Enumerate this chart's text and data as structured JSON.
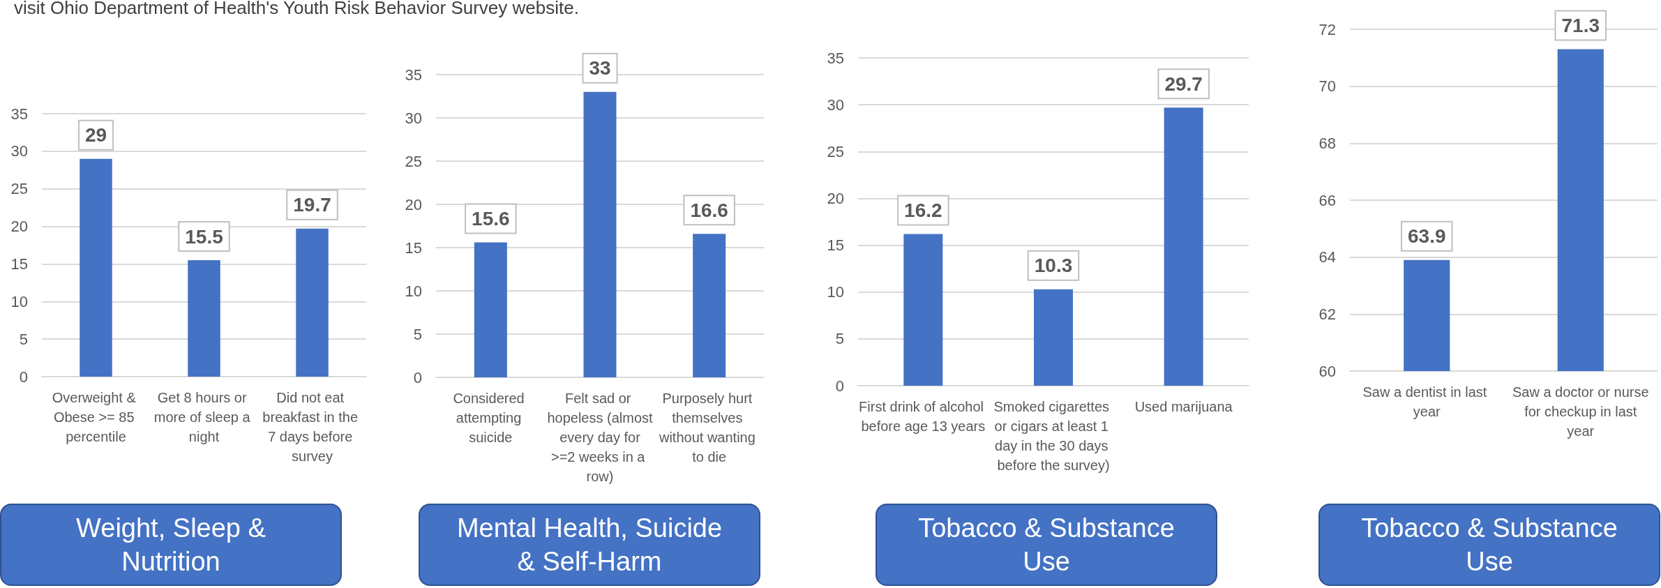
{
  "chart_data": [
    {
      "type": "bar",
      "title": "Weight, Sleep & Nutrition",
      "annotations": [
        "visit Ohio Department of Health's Youth Risk Behavior Survey website."
      ],
      "categories": [
        "Overweight & Obese >= 85 percentile",
        "Get 8 hours or more of sleep a night",
        "Did not eat breakfast in the 7 days before survey"
      ],
      "values": [
        29,
        15.5,
        19.7
      ],
      "color": "#4472c4",
      "ylim": [
        0,
        35
      ],
      "yticks": [
        0,
        5,
        10,
        15,
        20,
        25,
        30,
        35
      ],
      "grid": "y",
      "data_labels": true
    },
    {
      "type": "bar",
      "title": "Mental Health, Suicide & Self-Harm",
      "categories": [
        "Considered attempting suicide",
        "Felt sad or hopeless (almost every day for >=2 weeks in a row)",
        "Purposely hurt themselves without wanting to die"
      ],
      "values": [
        15.6,
        33,
        16.6
      ],
      "color": "#4472c4",
      "ylim": [
        0,
        35
      ],
      "yticks": [
        0,
        5,
        10,
        15,
        20,
        25,
        30,
        35
      ],
      "grid": "y",
      "data_labels": true
    },
    {
      "type": "bar",
      "title": "Tobacco & Substance Use",
      "categories": [
        "First drink of alcohol before age 13 years",
        "Smoked cigarettes or cigars at least 1 day in the 30 days before the survey)",
        "Used marijuana"
      ],
      "values": [
        16.2,
        10.3,
        29.7
      ],
      "color": "#4472c4",
      "ylim": [
        0,
        35
      ],
      "yticks": [
        0,
        5,
        10,
        15,
        20,
        25,
        30,
        35
      ],
      "grid": "y",
      "data_labels": true
    },
    {
      "type": "bar",
      "title": "Tobacco & Substance Use",
      "categories": [
        "Saw a dentist in last year",
        "Saw a doctor or nurse for checkup in last year"
      ],
      "values": [
        63.9,
        71.3
      ],
      "color": "#4472c4",
      "ylim": [
        60,
        72
      ],
      "yticks": [
        60,
        62,
        64,
        66,
        68,
        70,
        72
      ],
      "grid": "y",
      "data_labels": true
    }
  ]
}
